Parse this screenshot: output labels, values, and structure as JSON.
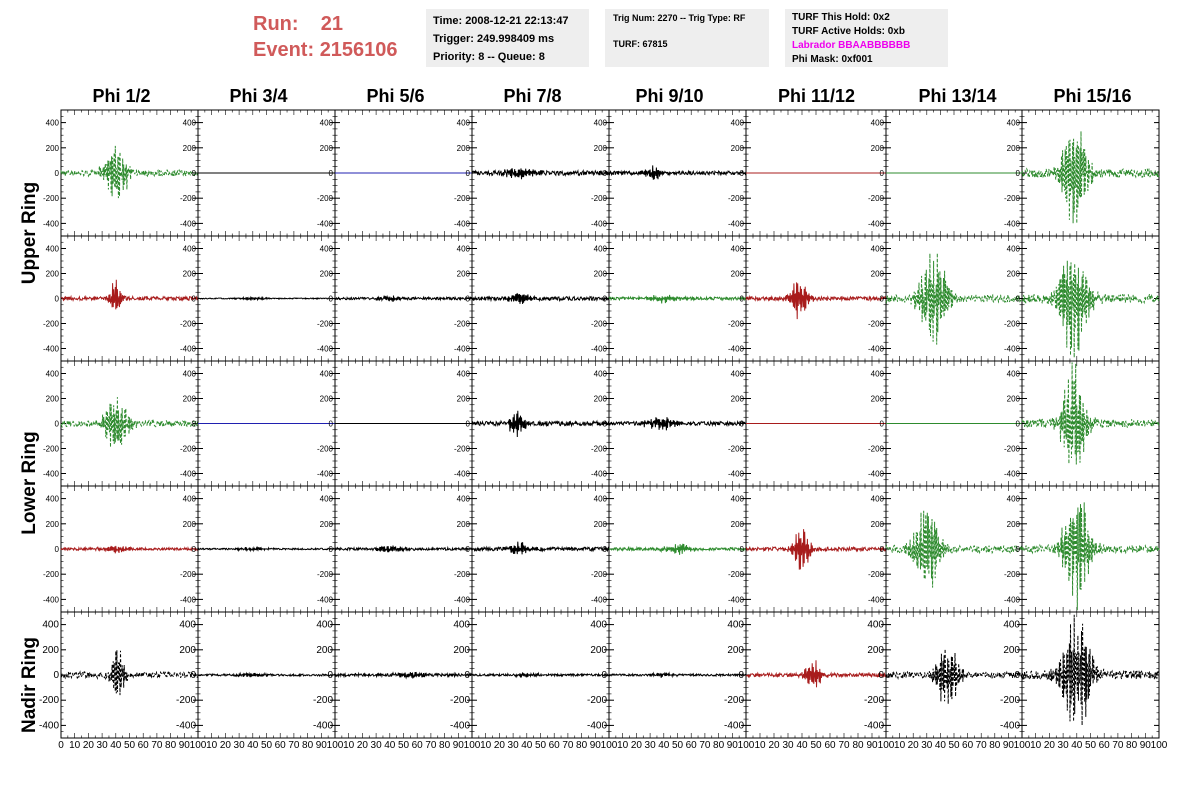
{
  "run_info": {
    "run_label": "Run:",
    "run_value": "21",
    "event_label": "Event:",
    "event_value": "2156106"
  },
  "time_box": {
    "time": "Time: 2008-12-21 22:13:47",
    "trigger": "Trigger: 249.998409 ms",
    "priority": "Priority: 8 -- Queue: 8"
  },
  "trig_box": {
    "trig": "Trig Num: 2270 -- Trig Type: RF",
    "turf": "TURF: 67815"
  },
  "turf_box": {
    "this_hold": "TURF This Hold: 0x2",
    "active_holds": "TURF Active Holds: 0xb",
    "labrador": "Labrador BBAABBBBBB",
    "phi_mask": "Phi Mask: 0xf001"
  },
  "columns": [
    "Phi 1/2",
    "Phi 3/4",
    "Phi 5/6",
    "Phi 7/8",
    "Phi 9/10",
    "Phi 11/12",
    "Phi 13/14",
    "Phi 15/16"
  ],
  "row_groups": [
    "Upper Ring",
    "Lower Ring",
    "Nadir Ring"
  ],
  "y_ticks": [
    400,
    200,
    0,
    -200,
    -400
  ],
  "x_ticks": [
    0,
    10,
    20,
    30,
    40,
    50,
    60,
    70,
    80,
    90,
    100
  ],
  "colors": {
    "green": "#2e8b2e",
    "red": "#a81c1c",
    "black": "#000000",
    "blue": "#2020b0",
    "run_text": "#d05a5a",
    "labrador_text": "#ee00ee",
    "info_bg": "#eeeeee"
  },
  "chart_data": {
    "type": "line",
    "x_range": [
      0,
      100
    ],
    "y_range": [
      -500,
      500
    ],
    "panels": [
      [
        {
          "color": "green",
          "style": "dashed",
          "amp": 220,
          "center": 40,
          "width": 9,
          "noise": 25
        },
        {
          "color": "black",
          "style": "solid",
          "amp": 0,
          "center": 40,
          "width": 8,
          "noise": 0
        },
        {
          "color": "blue",
          "style": "solid",
          "amp": 0,
          "center": 40,
          "width": 8,
          "noise": 0
        },
        {
          "color": "black",
          "style": "solid",
          "amp": 40,
          "center": 35,
          "width": 12,
          "noise": 18
        },
        {
          "color": "black",
          "style": "solid",
          "amp": 60,
          "center": 33,
          "width": 6,
          "noise": 15
        },
        {
          "color": "red",
          "style": "solid",
          "amp": 0,
          "center": 40,
          "width": 8,
          "noise": 0
        },
        {
          "color": "green",
          "style": "solid",
          "amp": 0,
          "center": 40,
          "width": 8,
          "noise": 0
        },
        {
          "color": "green",
          "style": "dashed",
          "amp": 460,
          "center": 38,
          "width": 9,
          "noise": 35
        }
      ],
      [
        {
          "color": "red",
          "style": "solid",
          "amp": 150,
          "center": 40,
          "width": 4,
          "noise": 15
        },
        {
          "color": "black",
          "style": "solid",
          "amp": 10,
          "center": 40,
          "width": 10,
          "noise": 4
        },
        {
          "color": "black",
          "style": "solid",
          "amp": 20,
          "center": 40,
          "width": 10,
          "noise": 10
        },
        {
          "color": "black",
          "style": "solid",
          "amp": 50,
          "center": 35,
          "width": 8,
          "noise": 15
        },
        {
          "color": "green",
          "style": "solid",
          "amp": 30,
          "center": 40,
          "width": 10,
          "noise": 12
        },
        {
          "color": "red",
          "style": "solid",
          "amp": 150,
          "center": 38,
          "width": 7,
          "noise": 15
        },
        {
          "color": "green",
          "style": "dashed",
          "amp": 380,
          "center": 35,
          "width": 10,
          "noise": 30
        },
        {
          "color": "green",
          "style": "dashed",
          "amp": 480,
          "center": 38,
          "width": 11,
          "noise": 35
        }
      ],
      [
        {
          "color": "green",
          "style": "dashed",
          "amp": 220,
          "center": 40,
          "width": 9,
          "noise": 25
        },
        {
          "color": "blue",
          "style": "solid",
          "amp": 0,
          "center": 40,
          "width": 8,
          "noise": 0
        },
        {
          "color": "black",
          "style": "solid",
          "amp": 0,
          "center": 40,
          "width": 8,
          "noise": 0
        },
        {
          "color": "black",
          "style": "solid",
          "amp": 110,
          "center": 33,
          "width": 6,
          "noise": 18
        },
        {
          "color": "black",
          "style": "solid",
          "amp": 50,
          "center": 38,
          "width": 12,
          "noise": 15
        },
        {
          "color": "red",
          "style": "solid",
          "amp": 0,
          "center": 40,
          "width": 8,
          "noise": 0
        },
        {
          "color": "green",
          "style": "solid",
          "amp": 0,
          "center": 40,
          "width": 8,
          "noise": 0
        },
        {
          "color": "green",
          "style": "dashed",
          "amp": 460,
          "center": 38,
          "width": 9,
          "noise": 35
        }
      ],
      [
        {
          "color": "red",
          "style": "solid",
          "amp": 30,
          "center": 40,
          "width": 10,
          "noise": 10
        },
        {
          "color": "black",
          "style": "solid",
          "amp": 15,
          "center": 40,
          "width": 10,
          "noise": 6
        },
        {
          "color": "black",
          "style": "solid",
          "amp": 30,
          "center": 40,
          "width": 10,
          "noise": 10
        },
        {
          "color": "black",
          "style": "solid",
          "amp": 60,
          "center": 35,
          "width": 6,
          "noise": 15
        },
        {
          "color": "green",
          "style": "solid",
          "amp": 40,
          "center": 50,
          "width": 10,
          "noise": 12
        },
        {
          "color": "red",
          "style": "solid",
          "amp": 180,
          "center": 40,
          "width": 6,
          "noise": 15
        },
        {
          "color": "green",
          "style": "dashed",
          "amp": 360,
          "center": 30,
          "width": 10,
          "noise": 30
        },
        {
          "color": "green",
          "style": "dashed",
          "amp": 450,
          "center": 40,
          "width": 10,
          "noise": 30
        }
      ],
      [
        {
          "color": "black",
          "style": "dashed",
          "amp": 240,
          "center": 42,
          "width": 5,
          "noise": 25
        },
        {
          "color": "black",
          "style": "solid",
          "amp": 15,
          "center": 40,
          "width": 10,
          "noise": 8
        },
        {
          "color": "black",
          "style": "solid",
          "amp": 30,
          "center": 55,
          "width": 10,
          "noise": 12
        },
        {
          "color": "black",
          "style": "solid",
          "amp": 15,
          "center": 40,
          "width": 10,
          "noise": 8
        },
        {
          "color": "black",
          "style": "solid",
          "amp": 15,
          "center": 40,
          "width": 10,
          "noise": 8
        },
        {
          "color": "red",
          "style": "solid",
          "amp": 120,
          "center": 48,
          "width": 6,
          "noise": 15
        },
        {
          "color": "black",
          "style": "dashed",
          "amp": 250,
          "center": 45,
          "width": 9,
          "noise": 25
        },
        {
          "color": "black",
          "style": "dashed",
          "amp": 480,
          "center": 40,
          "width": 11,
          "noise": 35
        }
      ]
    ]
  }
}
